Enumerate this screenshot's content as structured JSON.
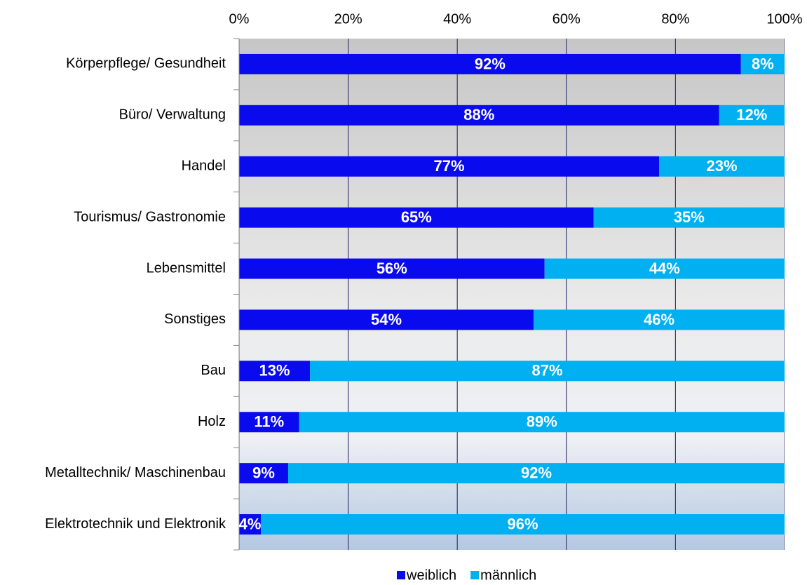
{
  "chart_data": {
    "type": "stacked_bar_horizontal",
    "categories": [
      "Körperpflege/ Gesundheit",
      "Büro/ Verwaltung",
      "Handel",
      "Tourismus/ Gastronomie",
      "Lebensmittel",
      "Sonstiges",
      "Bau",
      "Holz",
      "Metalltechnik/ Maschinenbau",
      "Elektrotechnik und Elektronik"
    ],
    "series": [
      {
        "name": "weiblich",
        "color": "#0a0aef",
        "values": [
          92,
          88,
          77,
          65,
          56,
          54,
          13,
          11,
          9,
          4
        ],
        "value_labels": [
          "92%",
          "88%",
          "77%",
          "65%",
          "56%",
          "54%",
          "13%",
          "11%",
          "9%",
          "4%"
        ]
      },
      {
        "name": "männlich",
        "color": "#00b0f0",
        "values": [
          8,
          12,
          23,
          35,
          44,
          46,
          87,
          89,
          92,
          96
        ],
        "value_labels": [
          "8%",
          "12%",
          "23%",
          "35%",
          "44%",
          "46%",
          "87%",
          "89%",
          "92%",
          "96%"
        ]
      }
    ],
    "xlim": [
      0,
      100
    ],
    "xticks": [
      {
        "value": 0,
        "label": "0%"
      },
      {
        "value": 20,
        "label": "20%"
      },
      {
        "value": 40,
        "label": "40%"
      },
      {
        "value": 60,
        "label": "60%"
      },
      {
        "value": 80,
        "label": "80%"
      },
      {
        "value": 100,
        "label": "100%"
      }
    ],
    "grid": true,
    "legend": "bottom"
  }
}
